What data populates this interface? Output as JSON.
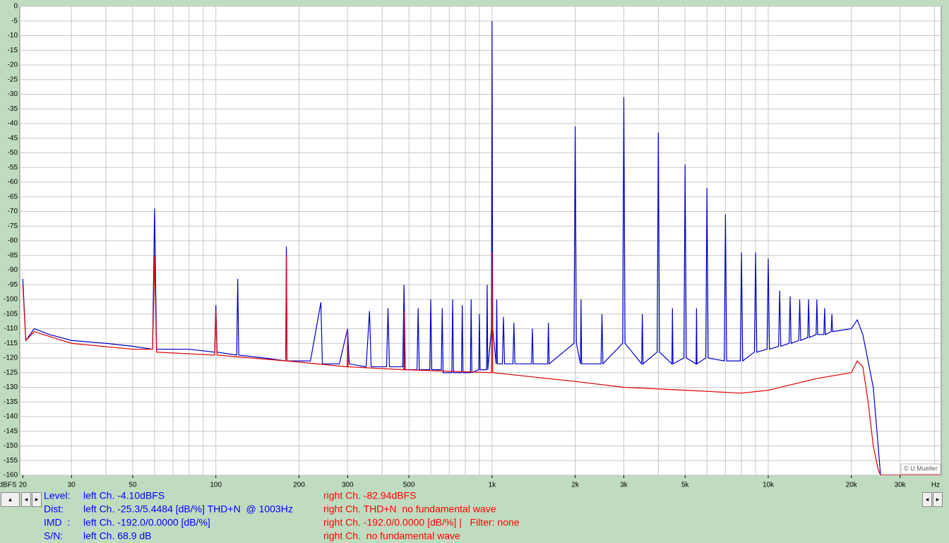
{
  "chart_data": {
    "type": "line",
    "x_label": "Hz",
    "y_label": "dBFS",
    "annotation": "© U.Mueller",
    "xlog": true,
    "grid": true,
    "xlim": [
      19.5,
      42300
    ],
    "ylim": [
      -160,
      0
    ],
    "xticks": [
      20,
      30,
      50,
      100,
      200,
      300,
      500,
      {
        "value": 1000,
        "label": "1k"
      },
      {
        "value": 2000,
        "label": "2k"
      },
      {
        "value": 3000,
        "label": "3k"
      },
      {
        "value": 5000,
        "label": "5k"
      },
      {
        "value": 10000,
        "label": "10k"
      },
      {
        "value": 20000,
        "label": "20k"
      },
      {
        "value": 30000,
        "label": "30k"
      }
    ],
    "xgrid": [
      30,
      40,
      50,
      60,
      70,
      80,
      90,
      100,
      200,
      300,
      400,
      500,
      600,
      700,
      800,
      900,
      1000,
      2000,
      3000,
      4000,
      5000,
      6000,
      7000,
      8000,
      9000,
      10000,
      20000,
      30000,
      40000
    ],
    "yticks": [
      0,
      -5,
      -10,
      -15,
      -20,
      -25,
      -30,
      -35,
      -40,
      -45,
      -50,
      -55,
      -60,
      -65,
      -70,
      -75,
      -80,
      -85,
      -90,
      -95,
      -100,
      -105,
      -110,
      -115,
      -120,
      -125,
      -130,
      -135,
      -140,
      -145,
      -150,
      -155,
      -160
    ],
    "series": [
      {
        "color": "#0000c8",
        "x": [
          20,
          20.5,
          22,
          25,
          30,
          40,
          50,
          59,
          60,
          61,
          80,
          99,
          100,
          101,
          119,
          120,
          121,
          150,
          179,
          180,
          181,
          220,
          240,
          243,
          280,
          300,
          304,
          350,
          360,
          365,
          415,
          420,
          425,
          475,
          480,
          485,
          535,
          540,
          545,
          595,
          600,
          605,
          655,
          660,
          665,
          715,
          720,
          725,
          775,
          780,
          785,
          835,
          840,
          845,
          895,
          900,
          905,
          955,
          960,
          965,
          995,
          1000,
          1005,
          1035,
          1040,
          1045,
          1090,
          1100,
          1110,
          1190,
          1200,
          1210,
          1390,
          1400,
          1410,
          1590,
          1600,
          1610,
          1980,
          2000,
          2020,
          2090,
          2100,
          2110,
          2480,
          2500,
          2520,
          2970,
          3000,
          3030,
          3480,
          3500,
          3520,
          3960,
          4000,
          4040,
          4480,
          4500,
          4520,
          4950,
          5000,
          5050,
          5480,
          5500,
          5520,
          5940,
          6000,
          6060,
          6930,
          7000,
          7070,
          7920,
          8000,
          8080,
          8910,
          9000,
          9090,
          9900,
          10000,
          10100,
          10900,
          11000,
          11100,
          11900,
          12000,
          12100,
          12900,
          13000,
          13100,
          13900,
          14000,
          14100,
          14900,
          15000,
          15100,
          15900,
          16000,
          16100,
          16900,
          17000,
          17100,
          20000,
          21000,
          22000,
          24000,
          25000,
          25500,
          42000
        ],
        "values": [
          -93,
          -114,
          -110,
          -112,
          -114,
          -115,
          -116,
          -117,
          -69,
          -117,
          -117,
          -118,
          -102,
          -118,
          -119,
          -93,
          -119,
          -120,
          -121,
          -82,
          -121,
          -121,
          -101,
          -122,
          -122,
          -110,
          -122,
          -123,
          -104,
          -123,
          -123,
          -103,
          -123,
          -123,
          -95,
          -124,
          -124,
          -103,
          -124,
          -124,
          -100,
          -124,
          -124,
          -103,
          -125,
          -125,
          -100,
          -125,
          -125,
          -102,
          -125,
          -125,
          -100,
          -125,
          -124,
          -105,
          -124,
          -124,
          -95,
          -124,
          -110,
          -5,
          -110,
          -122,
          -100,
          -122,
          -122,
          -106,
          -122,
          -122,
          -108,
          -122,
          -122,
          -110,
          -122,
          -122,
          -108,
          -122,
          -115,
          -41,
          -115,
          -122,
          -100,
          -122,
          -122,
          -105,
          -122,
          -115,
          -31,
          -115,
          -122,
          -105,
          -122,
          -118,
          -43,
          -118,
          -122,
          -103,
          -122,
          -120,
          -54,
          -120,
          -122,
          -103,
          -122,
          -120,
          -62,
          -120,
          -121,
          -71,
          -121,
          -121,
          -84,
          -121,
          -118,
          -84,
          -118,
          -117,
          -86,
          -117,
          -116,
          -97,
          -116,
          -115,
          -99,
          -115,
          -114,
          -100,
          -114,
          -113,
          -100,
          -113,
          -112,
          -100,
          -112,
          -112,
          -103,
          -112,
          -111,
          -105,
          -111,
          -110,
          -107,
          -112,
          -130,
          -150,
          -160,
          -160
        ]
      },
      {
        "color": "#e00000",
        "x": [
          20,
          20.5,
          22,
          30,
          50,
          59,
          60,
          61,
          99,
          100,
          101,
          179,
          180,
          181,
          299,
          300,
          301,
          479,
          480,
          481,
          995,
          1000,
          1005,
          2000,
          3000,
          5000,
          8000,
          10000,
          15000,
          20000,
          21000,
          22000,
          23000,
          24000,
          25000,
          25500,
          42000
        ],
        "values": [
          -95,
          -114,
          -111,
          -115,
          -117,
          -117,
          -85,
          -118,
          -119,
          -104,
          -119,
          -121,
          -85,
          -121,
          -123,
          -110,
          -123,
          -124,
          -104,
          -124,
          -125,
          -84,
          -125,
          -128,
          -130,
          -131,
          -132,
          -131,
          -127,
          -125,
          -121,
          -123,
          -135,
          -150,
          -158,
          -160,
          -160
        ]
      }
    ]
  },
  "readout": {
    "rows": [
      {
        "label": "Level:",
        "left": "left Ch. -4.10dBFS",
        "right": "right Ch. -82.94dBFS"
      },
      {
        "label": "Dist:",
        "left": "left Ch. -25.3/5.4484 [dB/%] THD+N  @ 1003Hz",
        "right": "right Ch. THD+N  no fundamental wave"
      },
      {
        "label": "IMD  :",
        "left": "left Ch. -192.0/0.0000 [dB/%]",
        "right": "right Ch. -192.0/0.0000 [dB/%] |   Filter: none"
      },
      {
        "label": "S/N:",
        "left": "left Ch. 68.9 dB",
        "right": "right Ch.  no fundamental wave"
      }
    ]
  }
}
